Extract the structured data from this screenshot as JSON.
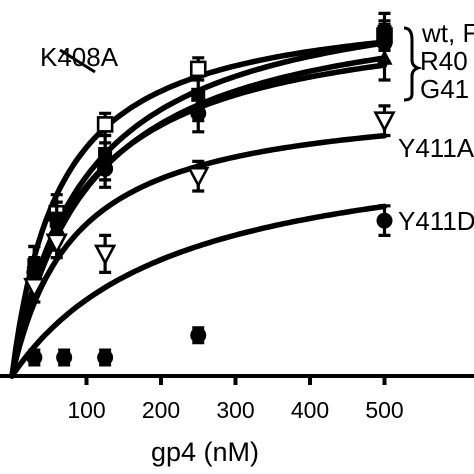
{
  "chart_data": {
    "type": "scatter",
    "title": "",
    "xlabel": "gp4 (nM)",
    "ylabel": "",
    "xlim": [
      -20,
      660
    ],
    "ylim": [
      0,
      1
    ],
    "x_ticks": [
      100,
      200,
      300,
      400,
      500
    ],
    "fit_model": "hyperbolic",
    "series": [
      {
        "name": "K408A",
        "marker": "open-square",
        "vmax": 1.02,
        "kd": 65,
        "points": [
          {
            "x": 60,
            "y": 0.44,
            "err": 0.05
          },
          {
            "x": 125,
            "y": 0.68,
            "err": 0.03
          },
          {
            "x": 250,
            "y": 0.83,
            "err": 0.03
          },
          {
            "x": 500,
            "y": 0.92,
            "err": 0.04
          }
        ]
      },
      {
        "name": "wt",
        "marker": "filled-square",
        "vmax": 1.08,
        "kd": 100,
        "points": [
          {
            "x": 30,
            "y": 0.3,
            "err": 0.05
          },
          {
            "x": 60,
            "y": 0.42,
            "err": 0.05
          },
          {
            "x": 125,
            "y": 0.6,
            "err": 0.05
          },
          {
            "x": 250,
            "y": 0.76,
            "err": 0.05
          },
          {
            "x": 500,
            "y": 0.93,
            "err": 0.05
          }
        ]
      },
      {
        "name": "R40",
        "marker": "filled-circle",
        "vmax": 1.04,
        "kd": 105,
        "points": [
          {
            "x": 30,
            "y": 0.28,
            "err": 0.04
          },
          {
            "x": 60,
            "y": 0.38,
            "err": 0.04
          },
          {
            "x": 125,
            "y": 0.56,
            "err": 0.05
          },
          {
            "x": 250,
            "y": 0.71,
            "err": 0.05
          },
          {
            "x": 500,
            "y": 0.9,
            "err": 0.05
          }
        ]
      },
      {
        "name": "G41",
        "marker": "filled-triangle",
        "vmax": 1.0,
        "kd": 95,
        "points": [
          {
            "x": 30,
            "y": 0.31,
            "err": 0.04
          },
          {
            "x": 60,
            "y": 0.4,
            "err": 0.04
          },
          {
            "x": 125,
            "y": 0.58,
            "err": 0.05
          },
          {
            "x": 250,
            "y": 0.73,
            "err": 0.04
          },
          {
            "x": 500,
            "y": 0.86,
            "err": 0.06
          }
        ]
      },
      {
        "name": "Y411A",
        "marker": "open-triangle-down",
        "vmax": 0.76,
        "kd": 85,
        "points": [
          {
            "x": 30,
            "y": 0.24,
            "err": 0.04
          },
          {
            "x": 60,
            "y": 0.36,
            "err": 0.04
          },
          {
            "x": 125,
            "y": 0.33,
            "err": 0.05
          },
          {
            "x": 250,
            "y": 0.54,
            "err": 0.04
          },
          {
            "x": 500,
            "y": 0.69,
            "err": 0.04
          }
        ]
      },
      {
        "name": "Y411D",
        "marker": "filled-circle",
        "vmax": 0.66,
        "kd": 220,
        "points": [
          {
            "x": 30,
            "y": 0.05,
            "err": 0.02
          },
          {
            "x": 70,
            "y": 0.05,
            "err": 0.02
          },
          {
            "x": 125,
            "y": 0.05,
            "err": 0.02
          },
          {
            "x": 250,
            "y": 0.11,
            "err": 0.02
          },
          {
            "x": 500,
            "y": 0.42,
            "err": 0.04
          }
        ]
      }
    ],
    "annotations": [
      {
        "text": "K408A"
      },
      {
        "text": "wt, F"
      },
      {
        "text": "R40"
      },
      {
        "text": "G41"
      },
      {
        "text": "Y411A"
      },
      {
        "text": "Y411D"
      }
    ],
    "grid": false,
    "legend": "none"
  }
}
